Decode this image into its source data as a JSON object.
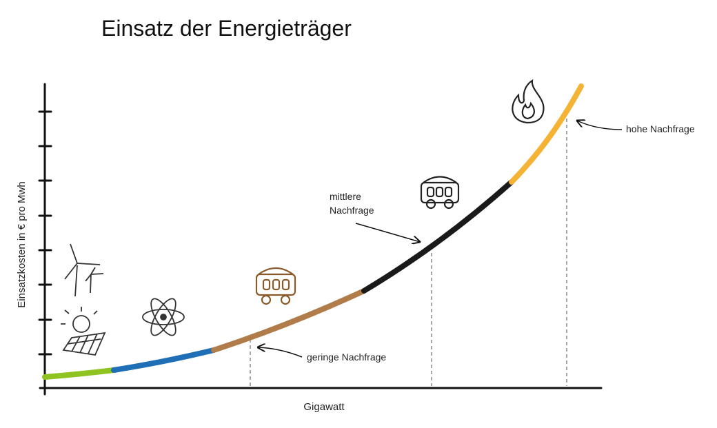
{
  "title": "Einsatz der Energieträger",
  "y_axis_label": "Einsatzkosten in € pro Mwh",
  "x_axis_label": "Gigawatt",
  "annotations": {
    "low": "geringe Nachfrage",
    "medium": [
      "mittlere",
      "Nachfrage"
    ],
    "high": "hohe Nachfrage"
  }
}
